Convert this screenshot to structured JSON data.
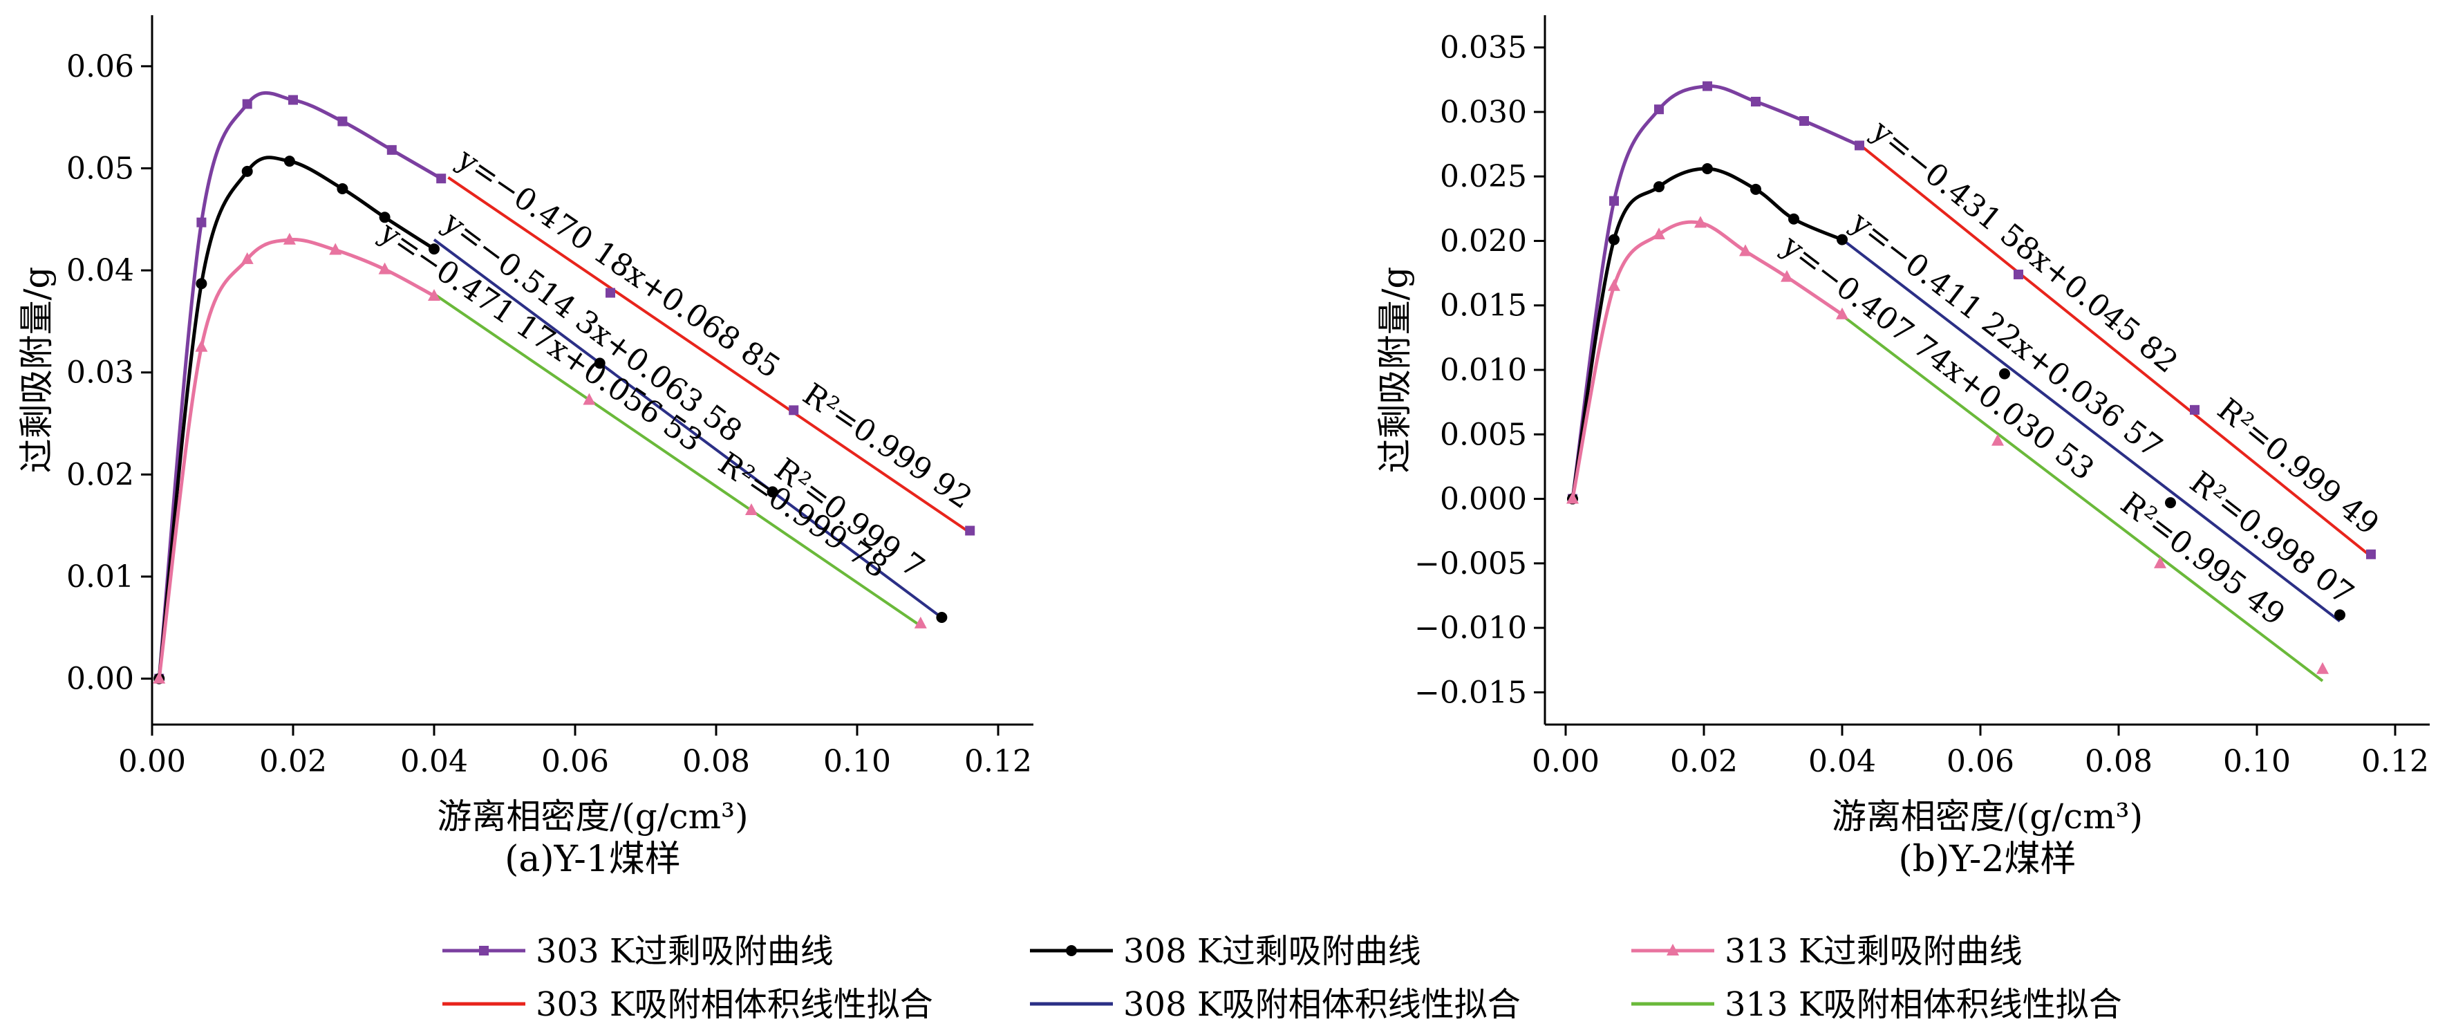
{
  "chart_data": [
    {
      "type": "line",
      "caption": "(a)Y-1煤样",
      "xlabel": "游离相密度/(g/cm³)",
      "ylabel": "过剩吸附量/g",
      "xlim": [
        0.0,
        0.125
      ],
      "ylim": [
        -0.0045,
        0.065
      ],
      "xticks": [
        "0.00",
        "0.02",
        "0.04",
        "0.06",
        "0.08",
        "0.10",
        "0.12"
      ],
      "yticks": [
        "0.00",
        "0.01",
        "0.02",
        "0.03",
        "0.04",
        "0.05",
        "0.06"
      ],
      "series": [
        {
          "name": "303 K过剩吸附曲线",
          "color": "#7b3fa0",
          "marker": "square",
          "x": [
            0.001,
            0.007,
            0.0135,
            0.02,
            0.027,
            0.034,
            0.041,
            0.065,
            0.091,
            0.116
          ],
          "y": [
            0.0,
            0.0447,
            0.0563,
            0.0567,
            0.0546,
            0.0518,
            0.049,
            0.0378,
            0.0263,
            0.0145
          ]
        },
        {
          "name": "308 K过剩吸附曲线",
          "color": "#000000",
          "marker": "circle",
          "x": [
            0.001,
            0.007,
            0.0135,
            0.0195,
            0.027,
            0.033,
            0.04,
            0.0635,
            0.088,
            0.112
          ],
          "y": [
            0.0,
            0.0387,
            0.0497,
            0.0507,
            0.048,
            0.0452,
            0.0421,
            0.0309,
            0.0183,
            0.006
          ]
        },
        {
          "name": "313 K过剩吸附曲线",
          "color": "#e8739f",
          "marker": "triangle",
          "x": [
            0.001,
            0.007,
            0.0135,
            0.0195,
            0.026,
            0.033,
            0.04,
            0.062,
            0.085,
            0.109
          ],
          "y": [
            0.0,
            0.0325,
            0.0411,
            0.043,
            0.042,
            0.0401,
            0.0375,
            0.0273,
            0.0165,
            0.0054
          ]
        }
      ],
      "fits": [
        {
          "name": "303 K吸附相体积线性拟合",
          "color": "#e8241c",
          "slope": -0.47018,
          "intercept": 0.06885,
          "x_range": [
            0.042,
            0.116
          ],
          "equation": "y=−0.470 18x+0.068 85",
          "r2": "R²=0.999 92"
        },
        {
          "name": "308 K吸附相体积线性拟合",
          "color": "#2b2f86",
          "slope": -0.5143,
          "intercept": 0.06358,
          "x_range": [
            0.04,
            0.112
          ],
          "equation": "y=−0.514 3x+0.063 58",
          "r2": "R²=0.999 7"
        },
        {
          "name": "313 K吸附相体积线性拟合",
          "color": "#6ab93a",
          "slope": -0.47117,
          "intercept": 0.05653,
          "x_range": [
            0.04,
            0.109
          ],
          "equation": "y=−0.471 17x+0.056 53",
          "r2": "R²=0.999 78"
        }
      ]
    },
    {
      "type": "line",
      "caption": "(b)Y-2煤样",
      "xlabel": "游离相密度/(g/cm³)",
      "ylabel": "过剩吸附量/g",
      "xlim": [
        -0.003,
        0.125
      ],
      "ylim": [
        -0.0175,
        0.0375
      ],
      "xticks": [
        "0.00",
        "0.02",
        "0.04",
        "0.06",
        "0.08",
        "0.10",
        "0.12"
      ],
      "yticks": [
        "−0.015",
        "−0.010",
        "−0.005",
        "0.000",
        "0.005",
        "0.010",
        "0.015",
        "0.020",
        "0.025",
        "0.030",
        "0.035"
      ],
      "series": [
        {
          "name": "303 K过剩吸附曲线",
          "color": "#7b3fa0",
          "marker": "square",
          "x": [
            0.001,
            0.007,
            0.0135,
            0.0205,
            0.0275,
            0.0345,
            0.0425,
            0.0655,
            0.091,
            0.1165
          ],
          "y": [
            0.0,
            0.0231,
            0.0302,
            0.032,
            0.0308,
            0.0293,
            0.0274,
            0.0174,
            0.0069,
            -0.0043
          ]
        },
        {
          "name": "308 K过剩吸附曲线",
          "color": "#000000",
          "marker": "circle",
          "x": [
            0.001,
            0.007,
            0.0135,
            0.0205,
            0.0275,
            0.033,
            0.04,
            0.0635,
            0.0875,
            0.112
          ],
          "y": [
            0.0,
            0.0201,
            0.0242,
            0.0256,
            0.024,
            0.0217,
            0.0201,
            0.0097,
            -0.0003,
            -0.009
          ]
        },
        {
          "name": "313 K过剩吸附曲线",
          "color": "#e8739f",
          "marker": "triangle",
          "x": [
            0.001,
            0.007,
            0.0135,
            0.0195,
            0.026,
            0.032,
            0.04,
            0.0625,
            0.086,
            0.1095
          ],
          "y": [
            0.0,
            0.0165,
            0.0205,
            0.0214,
            0.0192,
            0.0172,
            0.0143,
            0.0045,
            -0.005,
            -0.0132
          ]
        }
      ],
      "fits": [
        {
          "name": "303 K吸附相体积线性拟合",
          "color": "#e8241c",
          "slope": -0.43158,
          "intercept": 0.04582,
          "x_range": [
            0.0425,
            0.1165
          ],
          "equation": "y=−0.431 58x+0.045 82",
          "r2": "R²=0.999 49"
        },
        {
          "name": "308 K吸附相体积线性拟合",
          "color": "#2b2f86",
          "slope": -0.41122,
          "intercept": 0.03657,
          "x_range": [
            0.04,
            0.112
          ],
          "equation": "y=−0.411 22x+0.036 57",
          "r2": "R²=0.998 07"
        },
        {
          "name": "313 K吸附相体积线性拟合",
          "color": "#6ab93a",
          "slope": -0.40774,
          "intercept": 0.03053,
          "x_range": [
            0.04,
            0.1095
          ],
          "equation": "y=−0.407 74x+0.030 53",
          "r2": "R²=0.995 49"
        }
      ]
    }
  ],
  "legend": [
    {
      "label": "303 K过剩吸附曲线",
      "color": "#7b3fa0",
      "marker": "square"
    },
    {
      "label": "308 K过剩吸附曲线",
      "color": "#000000",
      "marker": "circle"
    },
    {
      "label": "313 K过剩吸附曲线",
      "color": "#e8739f",
      "marker": "triangle"
    },
    {
      "label": "303 K吸附相体积线性拟合",
      "color": "#e8241c",
      "marker": "none"
    },
    {
      "label": "308 K吸附相体积线性拟合",
      "color": "#2b2f86",
      "marker": "none"
    },
    {
      "label": "313 K吸附相体积线性拟合",
      "color": "#6ab93a",
      "marker": "none"
    }
  ]
}
